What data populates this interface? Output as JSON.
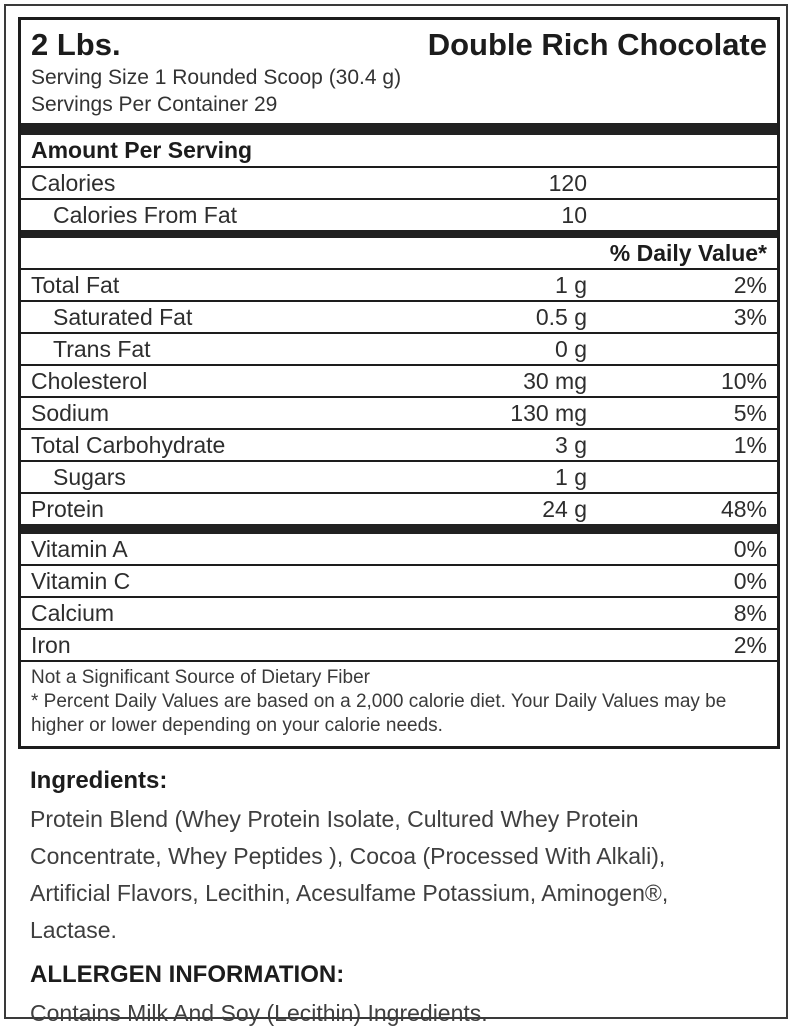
{
  "header": {
    "size": "2 Lbs.",
    "flavor": "Double Rich Chocolate",
    "serving_size": "Serving Size 1 Rounded Scoop (30.4 g)",
    "servings_per_container": "Servings Per Container 29"
  },
  "panel": {
    "amount_per_serving_label": "Amount Per Serving",
    "daily_value_header": "% Daily Value*",
    "calorie_rows": [
      {
        "label": "Calories",
        "amount": "120"
      },
      {
        "label": "Calories From Fat",
        "amount": "10"
      }
    ],
    "nutrient_rows": [
      {
        "label": "Total Fat",
        "amount": "1 g",
        "dv": "2%"
      },
      {
        "label": "Saturated Fat",
        "amount": "0.5 g",
        "dv": "3%"
      },
      {
        "label": "Trans Fat",
        "amount": "0 g",
        "dv": ""
      },
      {
        "label": "Cholesterol",
        "amount": "30 mg",
        "dv": "10%"
      },
      {
        "label": "Sodium",
        "amount": "130 mg",
        "dv": "5%"
      },
      {
        "label": "Total Carbohydrate",
        "amount": "3 g",
        "dv": "1%"
      },
      {
        "label": "Sugars",
        "amount": "1 g",
        "dv": ""
      },
      {
        "label": "Protein",
        "amount": "24 g",
        "dv": "48%"
      }
    ],
    "vitamin_rows": [
      {
        "label": "Vitamin A",
        "dv": "0%"
      },
      {
        "label": "Vitamin C",
        "dv": "0%"
      },
      {
        "label": "Calcium",
        "dv": "8%"
      },
      {
        "label": "Iron",
        "dv": "2%"
      }
    ],
    "footnotes": [
      "Not a Significant Source of Dietary Fiber",
      "* Percent Daily Values are based on a 2,000 calorie diet. Your Daily Values may be higher or lower depending on your calorie needs."
    ]
  },
  "ingredients": {
    "heading": "Ingredients:",
    "text": "Protein Blend (Whey Protein Isolate, Cultured Whey Protein Concentrate, Whey Peptides ), Cocoa (Processed With Alkali), Artificial Flavors, Lecithin, Acesulfame Potassium, Aminogen®, Lactase."
  },
  "allergen": {
    "heading": "ALLERGEN INFORMATION:",
    "text": "Contains Milk And Soy (Lecithin) Ingredients."
  }
}
